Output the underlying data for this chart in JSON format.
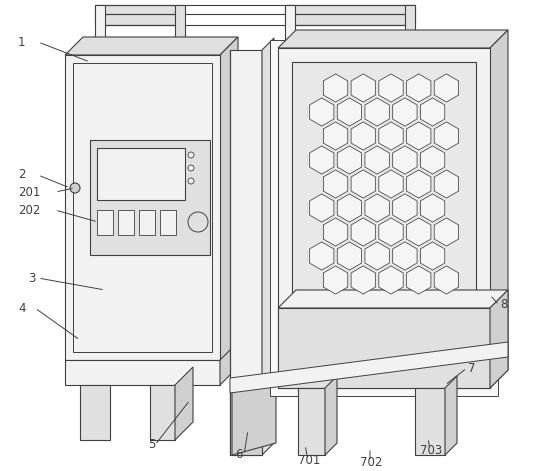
{
  "bg_color": "#ffffff",
  "line_color": "#404040",
  "lw": 0.8,
  "fig_w": 5.59,
  "fig_h": 4.71,
  "face_light": "#f2f2f2",
  "face_mid": "#e0e0e0",
  "face_dark": "#d0d0d0",
  "honeycomb_fill": "#e8e8e8"
}
